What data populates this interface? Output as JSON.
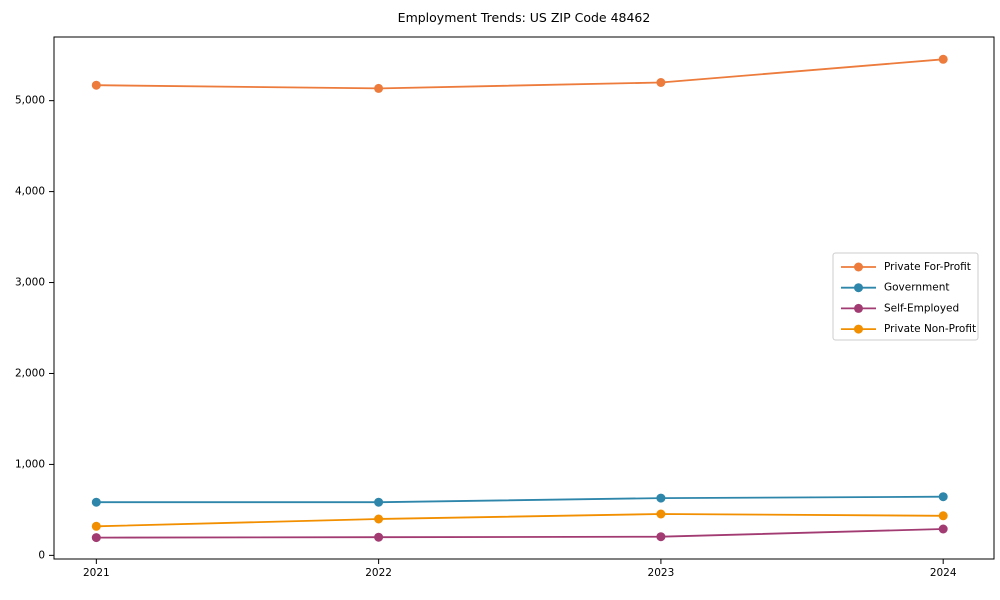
{
  "title": "Employment Trends: US ZIP Code 48462",
  "chart_data": {
    "type": "line",
    "title": "Employment Trends: US ZIP Code 48462",
    "xlabel": "",
    "ylabel": "",
    "x": [
      2021,
      2022,
      2023,
      2024
    ],
    "x_labels": [
      "2021",
      "2022",
      "2023",
      "2024"
    ],
    "xlim": [
      2020.85,
      2024.18
    ],
    "ylim": [
      -40,
      5700
    ],
    "yticks": [
      0,
      1000,
      2000,
      3000,
      4000,
      5000
    ],
    "ytick_labels": [
      "0",
      "1,000",
      "2,000",
      "3,000",
      "4,000",
      "5,000"
    ],
    "grid": false,
    "marker": "circle",
    "legend_position": "right",
    "series": [
      {
        "name": "Private For-Profit",
        "color": "#EC7B3C",
        "values": [
          5170,
          5135,
          5200,
          5455
        ]
      },
      {
        "name": "Government",
        "color": "#2E86AB",
        "values": [
          585,
          585,
          630,
          645
        ]
      },
      {
        "name": "Self-Employed",
        "color": "#A23B72",
        "values": [
          195,
          200,
          205,
          290
        ]
      },
      {
        "name": "Private Non-Profit",
        "color": "#F18F01",
        "values": [
          320,
          400,
          455,
          435
        ]
      }
    ]
  }
}
